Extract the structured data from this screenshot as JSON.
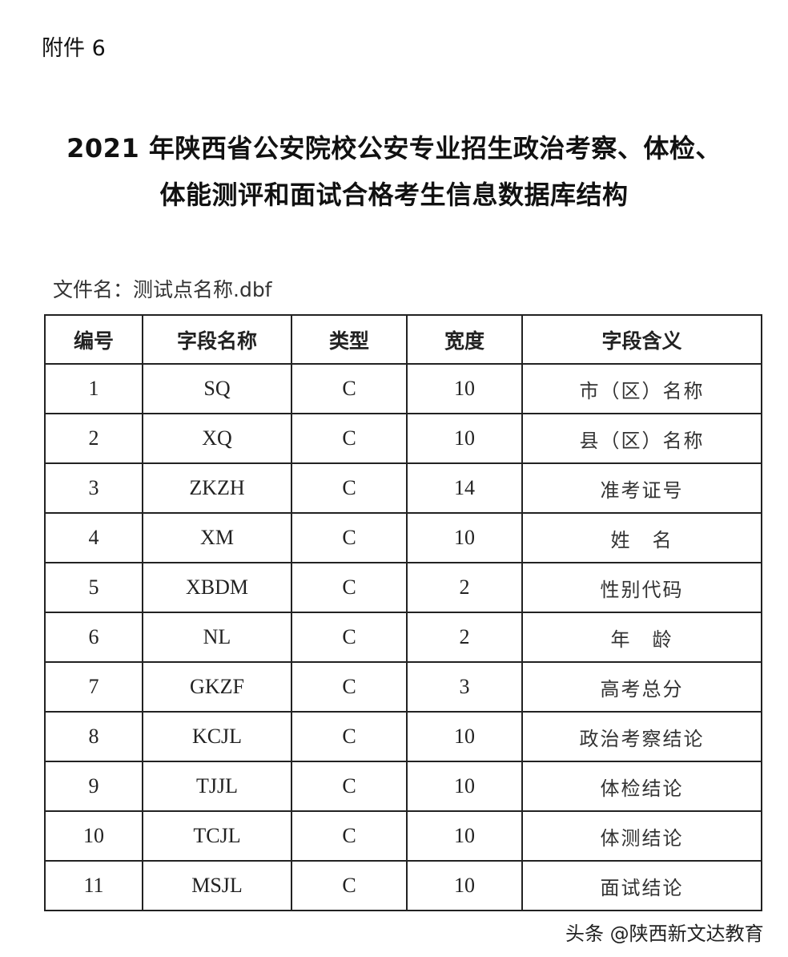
{
  "attachment_label": "附件 6",
  "title_line1": "2021 年陕西省公安院校公安专业招生政治考察、体检、",
  "title_line2": "体能测评和面试合格考生信息数据库结构",
  "file_name": "文件名：测试点名称.dbf",
  "table": {
    "headers": [
      "编号",
      "字段名称",
      "类型",
      "宽度",
      "字段含义"
    ],
    "rows": [
      [
        "1",
        "SQ",
        "C",
        "10",
        "市（区）名称"
      ],
      [
        "2",
        "XQ",
        "C",
        "10",
        "县（区）名称"
      ],
      [
        "3",
        "ZKZH",
        "C",
        "14",
        "准考证号"
      ],
      [
        "4",
        "XM",
        "C",
        "10",
        "姓　名"
      ],
      [
        "5",
        "XBDM",
        "C",
        "2",
        "性别代码"
      ],
      [
        "6",
        "NL",
        "C",
        "2",
        "年　龄"
      ],
      [
        "7",
        "GKZF",
        "C",
        "3",
        "高考总分"
      ],
      [
        "8",
        "KCJL",
        "C",
        "10",
        "政治考察结论"
      ],
      [
        "9",
        "TJJL",
        "C",
        "10",
        "体检结论"
      ],
      [
        "10",
        "TCJL",
        "C",
        "10",
        "体测结论"
      ],
      [
        "11",
        "MSJL",
        "C",
        "10",
        "面试结论"
      ]
    ]
  },
  "watermark": "头条 @陕西新文达教育"
}
